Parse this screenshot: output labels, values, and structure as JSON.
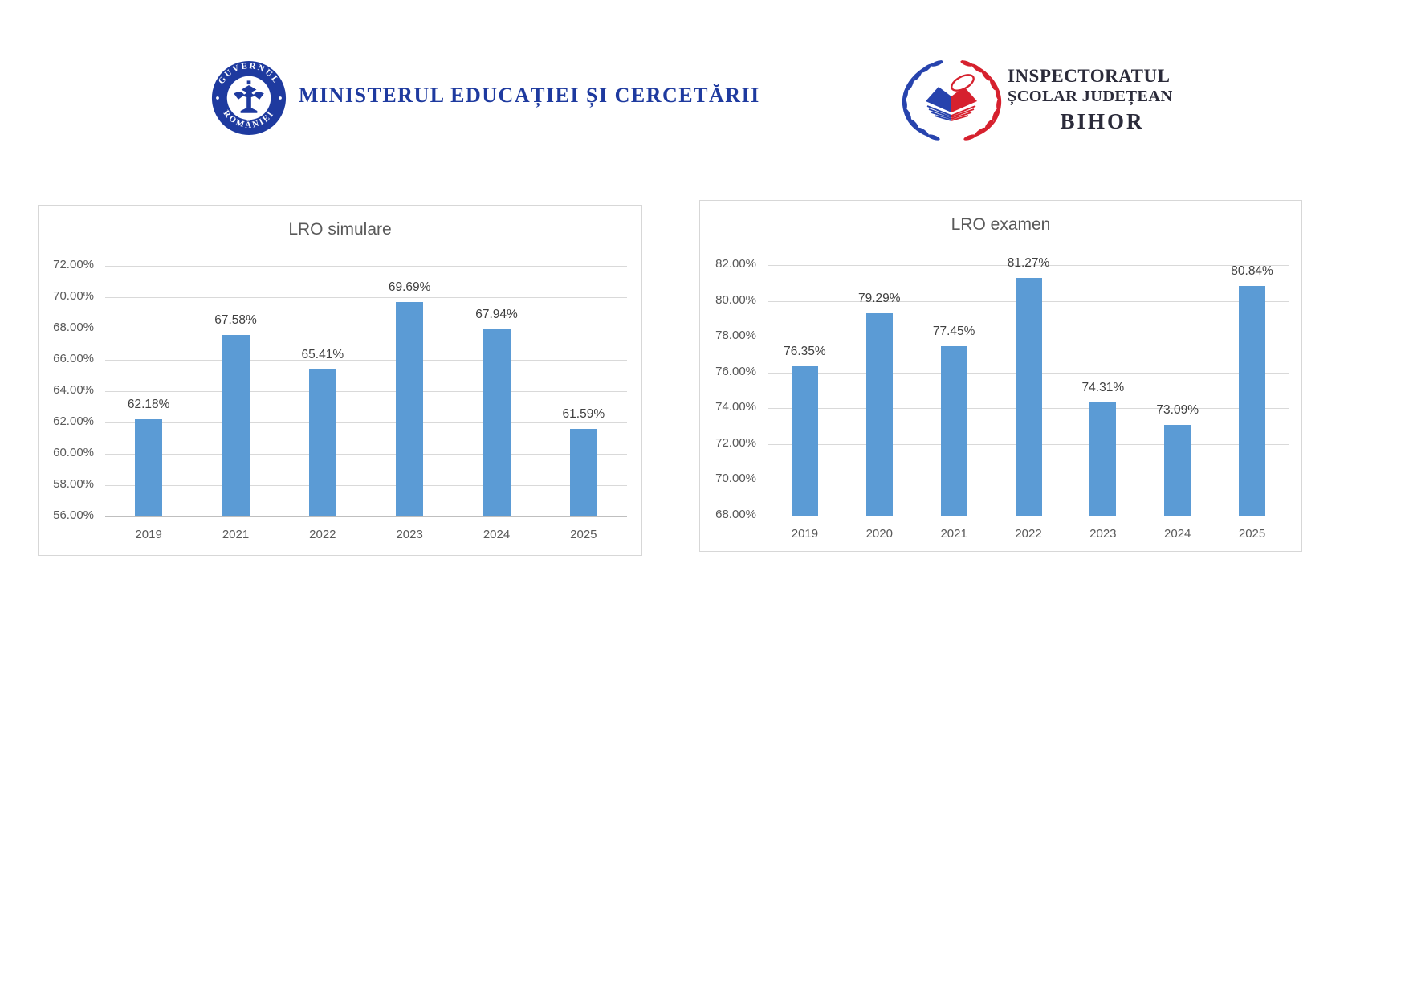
{
  "header": {
    "ministry": {
      "seal_text_top": "GUVERNUL",
      "seal_text_bottom": "ROMÂNIEI",
      "name": "MINISTERUL EDUCAȚIEI ȘI CERCETĂRII"
    },
    "inspectorate": {
      "line1": "INSPECTORATUL",
      "line2": "ȘCOLAR JUDEȚEAN",
      "line3": "BIHOR"
    }
  },
  "colors": {
    "bar": "#5B9BD5",
    "ministry_blue": "#1E3A9F",
    "wreath_blue": "#2743AD",
    "wreath_red": "#D6212E",
    "axis_text": "#595959",
    "data_label_text": "#404040",
    "gridline": "#D9D9D9"
  },
  "chart_data": [
    {
      "type": "bar",
      "title": "LRO simulare",
      "categories": [
        "2019",
        "2021",
        "2022",
        "2023",
        "2024",
        "2025"
      ],
      "values": [
        62.18,
        67.58,
        65.41,
        69.69,
        67.94,
        61.59
      ],
      "data_labels": [
        "62.18%",
        "67.58%",
        "65.41%",
        "69.69%",
        "67.94%",
        "61.59%"
      ],
      "ylim": [
        56,
        72
      ],
      "ytick_step": 2,
      "ytick_labels": [
        "72.00%",
        "70.00%",
        "68.00%",
        "66.00%",
        "64.00%",
        "62.00%",
        "60.00%",
        "58.00%",
        "56.00%"
      ],
      "xlabel": "",
      "ylabel": "",
      "grid": true,
      "legend": "none"
    },
    {
      "type": "bar",
      "title": "LRO examen",
      "categories": [
        "2019",
        "2020",
        "2021",
        "2022",
        "2023",
        "2024",
        "2025"
      ],
      "values": [
        76.35,
        79.29,
        77.45,
        81.27,
        74.31,
        73.09,
        80.84
      ],
      "data_labels": [
        "76.35%",
        "79.29%",
        "77.45%",
        "81.27%",
        "74.31%",
        "73.09%",
        "80.84%"
      ],
      "ylim": [
        68,
        82
      ],
      "ytick_step": 2,
      "ytick_labels": [
        "82.00%",
        "80.00%",
        "78.00%",
        "76.00%",
        "74.00%",
        "72.00%",
        "70.00%",
        "68.00%"
      ],
      "xlabel": "",
      "ylabel": "",
      "grid": true,
      "legend": "none"
    }
  ]
}
